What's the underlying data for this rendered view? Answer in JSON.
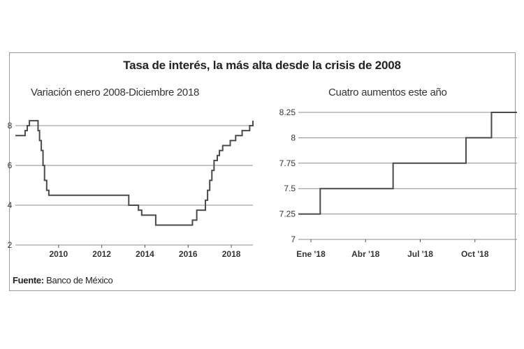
{
  "title": "Tasa de interés, la más alta desde la crisis de 2008",
  "source_label": "Fuente:",
  "source_text": "Banco de México",
  "chart_data": [
    {
      "type": "line",
      "title": "Variación enero 2008-Diciembre 2018",
      "xlabel": "",
      "ylabel": "",
      "ylim": [
        2,
        8
      ],
      "yticks": [
        2,
        4,
        6,
        8
      ],
      "xticks": [
        "2010",
        "2012",
        "2014",
        "2016",
        "2018"
      ],
      "xlim": [
        2008.0,
        2019.0
      ],
      "step": true,
      "grid": "horizontal",
      "series": [
        {
          "x": [
            2008.0,
            2008.45,
            2008.55,
            2008.65,
            2008.95,
            2009.05,
            2009.12,
            2009.2,
            2009.28,
            2009.35,
            2009.45,
            2009.55,
            2013.25,
            2013.7,
            2013.85,
            2014.5,
            2016.0,
            2016.2,
            2016.4,
            2016.8,
            2016.9,
            2017.0,
            2017.1,
            2017.2,
            2017.35,
            2017.45,
            2017.6,
            2017.95,
            2018.2,
            2018.5,
            2018.85,
            2019.0
          ],
          "y": [
            7.5,
            7.75,
            8.0,
            8.25,
            8.25,
            7.75,
            7.25,
            6.75,
            6.0,
            5.25,
            4.75,
            4.5,
            4.0,
            3.75,
            3.5,
            3.0,
            3.0,
            3.25,
            3.75,
            4.25,
            4.75,
            5.25,
            5.75,
            6.25,
            6.5,
            6.75,
            7.0,
            7.25,
            7.5,
            7.75,
            8.0,
            8.25
          ]
        }
      ]
    },
    {
      "type": "line",
      "title": "Cuatro aumentos este año",
      "xlabel": "",
      "ylabel": "",
      "ylim": [
        7,
        8.25
      ],
      "yticks": [
        "7",
        "7.25",
        "7.5",
        "7.75",
        "8",
        "8.25"
      ],
      "xticks": [
        "Ene '18",
        "Abr '18",
        "Jul '18",
        "Oct '18"
      ],
      "xlim": [
        0,
        12
      ],
      "step": true,
      "grid": "horizontal",
      "series": [
        {
          "x": [
            0,
            1.2,
            5.2,
            9.2,
            10.6,
            12
          ],
          "y": [
            7.25,
            7.5,
            7.75,
            8.0,
            8.25,
            8.25
          ]
        }
      ]
    }
  ]
}
